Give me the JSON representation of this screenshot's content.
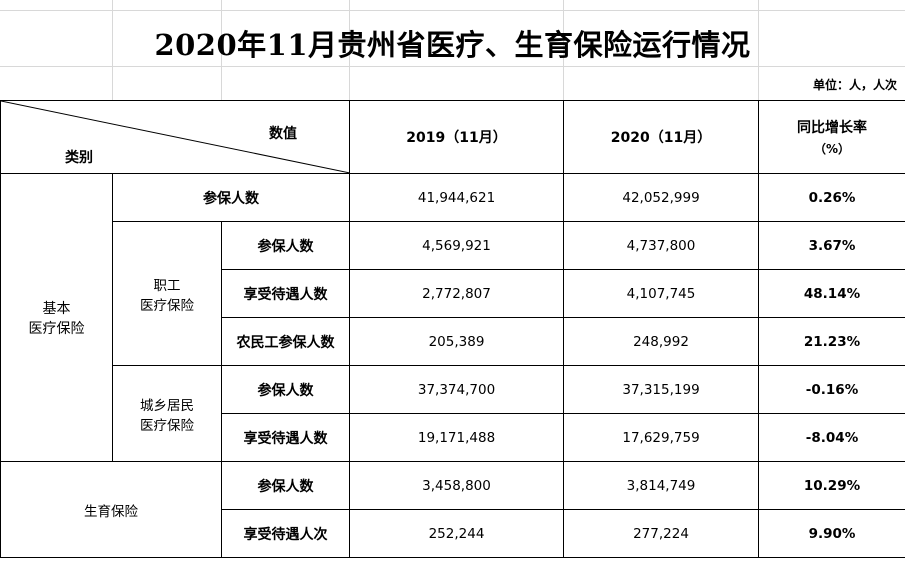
{
  "title": "2020年11月贵州省医疗、生育保险运行情况",
  "unit": "单位：人，人次",
  "header": {
    "diag_top": "数值",
    "diag_bottom": "类别",
    "col_2019": "2019（11月）",
    "col_2020": "2020（11月）",
    "col_growth_line1": "同比增长率",
    "col_growth_line2": "（%）"
  },
  "groups": {
    "basic": "基本\n医疗保险",
    "employee": "职工\n医疗保险",
    "resident": "城乡居民\n医疗保险",
    "maternity": "生育保险"
  },
  "rows": [
    {
      "label": "参保人数",
      "v2019": "41,944,621",
      "v2020": "42,052,999",
      "growth": "0.26%"
    },
    {
      "label": "参保人数",
      "v2019": "4,569,921",
      "v2020": "4,737,800",
      "growth": "3.67%"
    },
    {
      "label": "享受待遇人数",
      "v2019": "2,772,807",
      "v2020": "4,107,745",
      "growth": "48.14%"
    },
    {
      "label": "农民工参保人数",
      "v2019": "205,389",
      "v2020": "248,992",
      "growth": "21.23%"
    },
    {
      "label": "参保人数",
      "v2019": "37,374,700",
      "v2020": "37,315,199",
      "growth": "-0.16%"
    },
    {
      "label": "享受待遇人数",
      "v2019": "19,171,488",
      "v2020": "17,629,759",
      "growth": "-8.04%"
    },
    {
      "label": "参保人数",
      "v2019": "3,458,800",
      "v2020": "3,814,749",
      "growth": "10.29%"
    },
    {
      "label": "享受待遇人次",
      "v2019": "252,244",
      "v2020": "277,224",
      "growth": "9.90%"
    }
  ]
}
